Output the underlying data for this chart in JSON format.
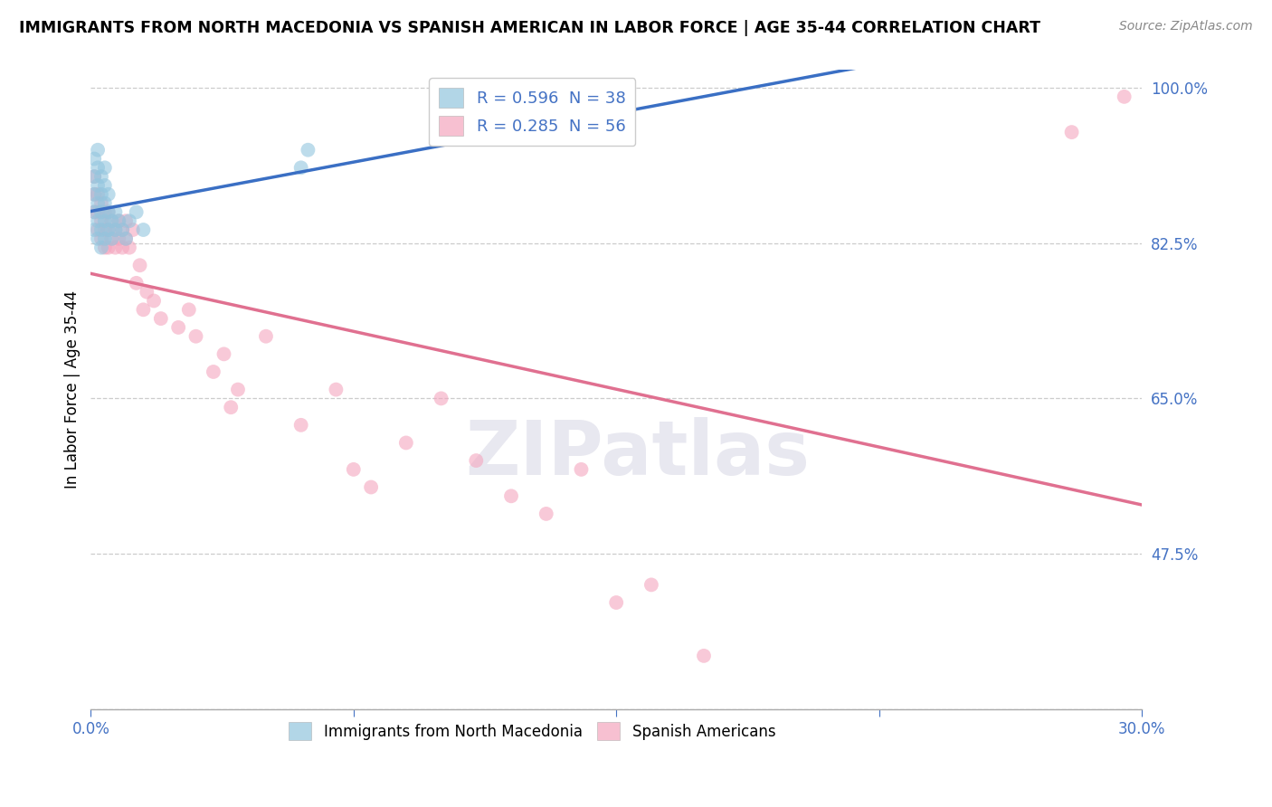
{
  "title": "IMMIGRANTS FROM NORTH MACEDONIA VS SPANISH AMERICAN IN LABOR FORCE | AGE 35-44 CORRELATION CHART",
  "source": "Source: ZipAtlas.com",
  "ylabel": "In Labor Force | Age 35-44",
  "xlim": [
    0.0,
    0.3
  ],
  "ylim": [
    0.3,
    1.02
  ],
  "xticks": [
    0.0,
    0.075,
    0.15,
    0.225,
    0.3
  ],
  "yticks": [
    0.3,
    0.475,
    0.65,
    0.825,
    1.0
  ],
  "blue_R": 0.596,
  "blue_N": 38,
  "pink_R": 0.285,
  "pink_N": 56,
  "blue_color": "#92c5de",
  "pink_color": "#f4a6be",
  "blue_line_color": "#3a6fc4",
  "pink_line_color": "#e07090",
  "background_color": "#ffffff",
  "grid_color": "#cccccc",
  "blue_x": [
    0.001,
    0.001,
    0.001,
    0.001,
    0.001,
    0.002,
    0.002,
    0.002,
    0.002,
    0.002,
    0.002,
    0.003,
    0.003,
    0.003,
    0.003,
    0.003,
    0.004,
    0.004,
    0.004,
    0.004,
    0.004,
    0.005,
    0.005,
    0.005,
    0.006,
    0.006,
    0.007,
    0.007,
    0.008,
    0.009,
    0.01,
    0.011,
    0.013,
    0.015,
    0.06,
    0.062,
    0.145,
    0.15
  ],
  "blue_y": [
    0.84,
    0.86,
    0.88,
    0.9,
    0.92,
    0.83,
    0.85,
    0.87,
    0.89,
    0.91,
    0.93,
    0.82,
    0.84,
    0.86,
    0.88,
    0.9,
    0.83,
    0.85,
    0.87,
    0.89,
    0.91,
    0.84,
    0.86,
    0.88,
    0.83,
    0.85,
    0.84,
    0.86,
    0.85,
    0.84,
    0.83,
    0.85,
    0.86,
    0.84,
    0.91,
    0.93,
    0.96,
    0.98
  ],
  "pink_x": [
    0.001,
    0.001,
    0.001,
    0.002,
    0.002,
    0.002,
    0.003,
    0.003,
    0.003,
    0.004,
    0.004,
    0.004,
    0.005,
    0.005,
    0.005,
    0.006,
    0.006,
    0.007,
    0.007,
    0.008,
    0.008,
    0.009,
    0.009,
    0.01,
    0.01,
    0.011,
    0.012,
    0.013,
    0.014,
    0.015,
    0.016,
    0.018,
    0.02,
    0.025,
    0.028,
    0.03,
    0.035,
    0.038,
    0.04,
    0.042,
    0.05,
    0.06,
    0.07,
    0.075,
    0.08,
    0.09,
    0.1,
    0.11,
    0.12,
    0.13,
    0.14,
    0.15,
    0.16,
    0.175,
    0.28,
    0.295
  ],
  "pink_y": [
    0.86,
    0.88,
    0.9,
    0.84,
    0.86,
    0.88,
    0.83,
    0.85,
    0.87,
    0.82,
    0.84,
    0.86,
    0.82,
    0.84,
    0.86,
    0.83,
    0.85,
    0.82,
    0.84,
    0.83,
    0.85,
    0.82,
    0.84,
    0.83,
    0.85,
    0.82,
    0.84,
    0.78,
    0.8,
    0.75,
    0.77,
    0.76,
    0.74,
    0.73,
    0.75,
    0.72,
    0.68,
    0.7,
    0.64,
    0.66,
    0.72,
    0.62,
    0.66,
    0.57,
    0.55,
    0.6,
    0.65,
    0.58,
    0.54,
    0.52,
    0.57,
    0.42,
    0.44,
    0.36,
    0.95,
    0.99
  ]
}
